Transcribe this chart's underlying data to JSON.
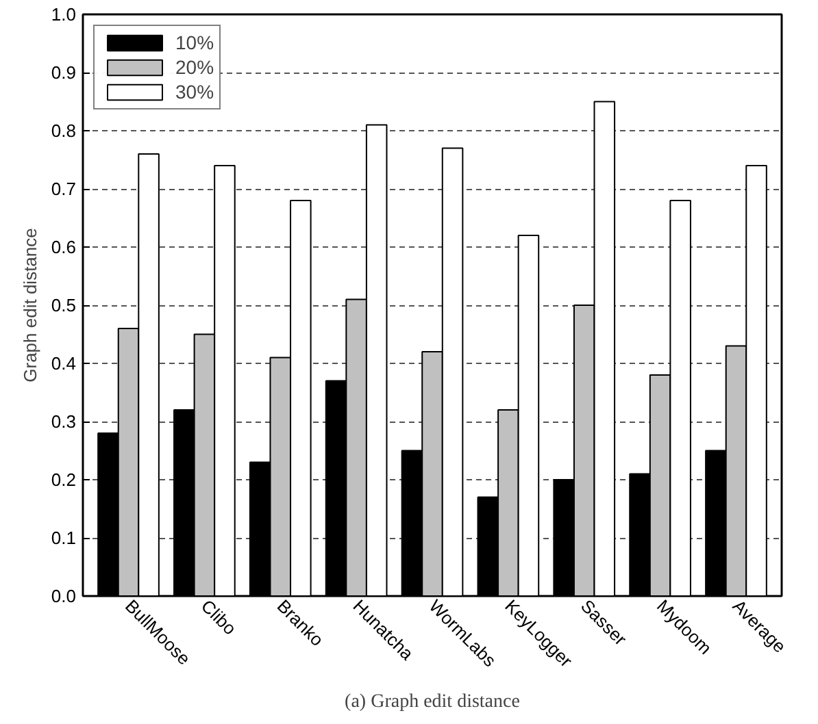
{
  "chart_data": {
    "type": "bar",
    "ylabel": "Graph edit distance",
    "annotations": [
      "(a) Graph edit distance"
    ],
    "categories": [
      "BullMoose",
      "Clibo",
      "Branko",
      "Hunatcha",
      "WormLabs",
      "KeyLogger",
      "Sasser",
      "Mydoom",
      "Average"
    ],
    "series": [
      {
        "name": "10%",
        "color": "#000000",
        "values": [
          0.28,
          0.32,
          0.23,
          0.37,
          0.25,
          0.17,
          0.2,
          0.21,
          0.25
        ]
      },
      {
        "name": "20%",
        "color": "#c0c0c0",
        "values": [
          0.46,
          0.45,
          0.41,
          0.51,
          0.42,
          0.32,
          0.5,
          0.38,
          0.43
        ]
      },
      {
        "name": "30%",
        "color": "#ffffff",
        "values": [
          0.76,
          0.74,
          0.68,
          0.81,
          0.77,
          0.62,
          0.85,
          0.68,
          0.74
        ]
      }
    ],
    "ylim": [
      0,
      1
    ],
    "yticks": [
      {
        "value": 0,
        "label": "0.0"
      },
      0.1,
      0.2,
      0.3,
      0.4,
      0.5,
      0.6,
      0.7,
      0.8,
      0.9,
      {
        "value": 1,
        "label": "1.0"
      }
    ],
    "grid": "y",
    "legend": "top left"
  }
}
